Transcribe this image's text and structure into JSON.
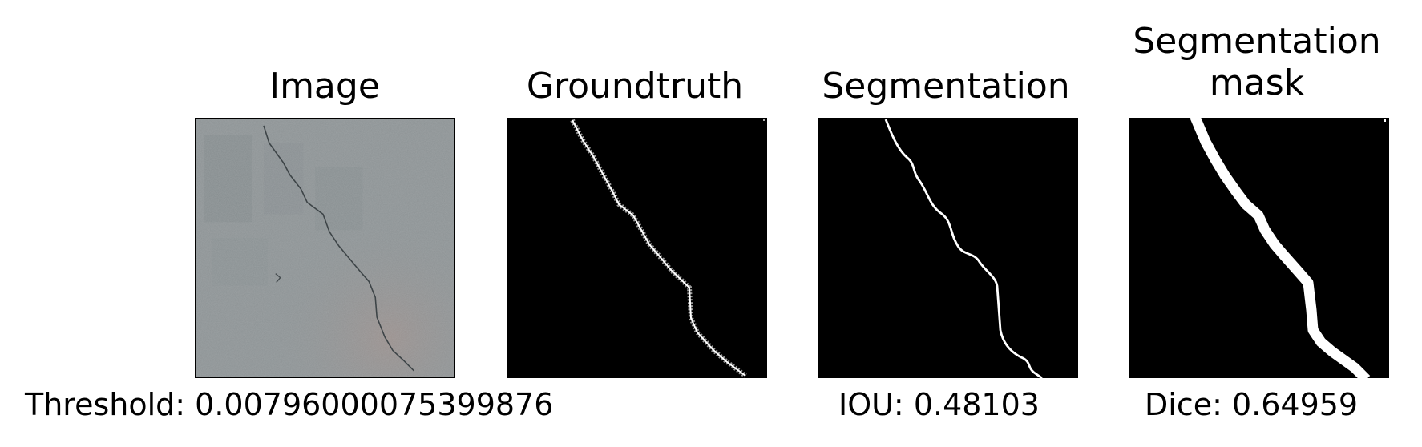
{
  "panels": [
    {
      "title": "Image"
    },
    {
      "title": "Groundtruth"
    },
    {
      "title": "Segmentation"
    },
    {
      "title": "Segmentation\nmask"
    }
  ],
  "captions": {
    "threshold": "Threshold: 0.00796000075399876",
    "iou": "IOU: 0.48103",
    "dice": "Dice: 0.64959"
  },
  "colors": {
    "background": "#ffffff",
    "mask_background": "#000000",
    "mask_foreground": "#ffffff",
    "concrete": "#8e9496"
  }
}
